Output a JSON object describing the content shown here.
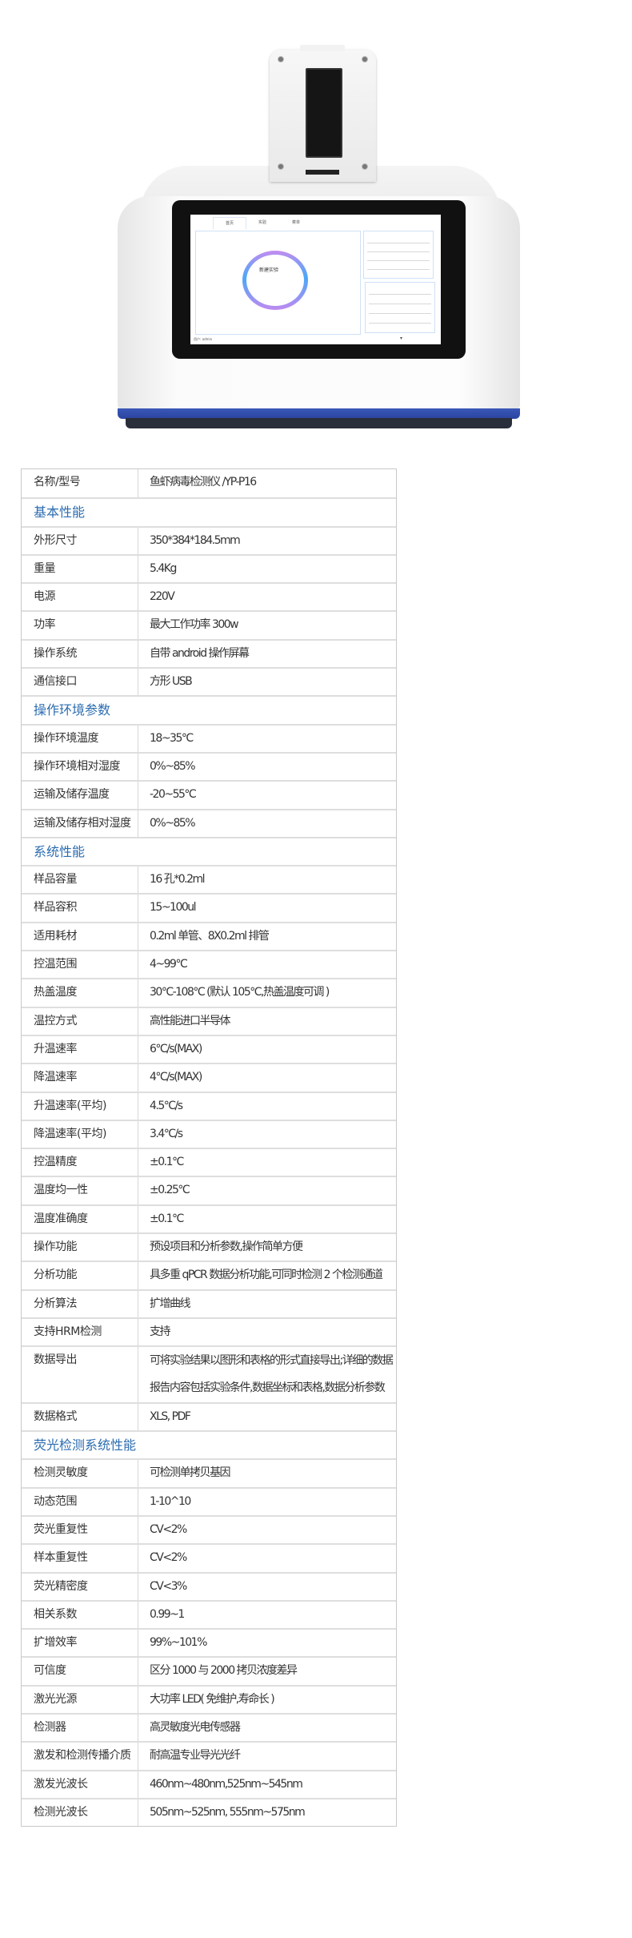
{
  "device_screen": {
    "tabs": [
      "首页",
      "实验",
      "菜单"
    ],
    "center_button": "新建实验",
    "user_label": "用户: admin"
  },
  "colors": {
    "section_heading": "#2b6cb0",
    "device_band": "#3b58b8"
  },
  "spec_table": [
    {
      "type": "row",
      "label": "名称/型号",
      "value": "鱼虾病毒检测仪 /YP-P16"
    },
    {
      "type": "section",
      "label": "基本性能"
    },
    {
      "type": "row",
      "label": "外形尺寸",
      "value": "350*384*184.5mm"
    },
    {
      "type": "row",
      "label": "重量",
      "value": "5.4Kg"
    },
    {
      "type": "row",
      "label": "电源",
      "value": "220V"
    },
    {
      "type": "row",
      "label": "功率",
      "value": "最大工作功率 300w"
    },
    {
      "type": "row",
      "label": "操作系统",
      "value": "自带 android 操作屏幕"
    },
    {
      "type": "row",
      "label": "通信接口",
      "value": "方形 USB"
    },
    {
      "type": "section",
      "label": "操作环境参数"
    },
    {
      "type": "row",
      "label": "操作环境温度",
      "value": "18~35°C"
    },
    {
      "type": "row",
      "label": "操作环境相对湿度",
      "value": "0%~85%"
    },
    {
      "type": "row",
      "label": "运输及储存温度",
      "value": "-20~55°C"
    },
    {
      "type": "row",
      "label": "运输及储存相对湿度",
      "value": "0%~85%"
    },
    {
      "type": "section",
      "label": "系统性能"
    },
    {
      "type": "row",
      "label": "样品容量",
      "value": "16 孔*0.2ml"
    },
    {
      "type": "row",
      "label": "样品容积",
      "value": "15~100ul"
    },
    {
      "type": "row",
      "label": "适用耗材",
      "value": "0.2ml 单管、8X0.2ml 排管"
    },
    {
      "type": "row",
      "label": "控温范围",
      "value": "4~99°C"
    },
    {
      "type": "row",
      "label": "热盖温度",
      "value": "30°C-108°C (默认 105°C,热盖温度可调 )"
    },
    {
      "type": "row",
      "label": "温控方式",
      "value": "高性能进口半导体"
    },
    {
      "type": "row",
      "label": "升温速率",
      "value": "6°C/s(MAX)"
    },
    {
      "type": "row",
      "label": "降温速率",
      "value": "4°C/s(MAX)"
    },
    {
      "type": "row",
      "label": "升温速率(平均)",
      "value": "4.5°C/s"
    },
    {
      "type": "row",
      "label": "降温速率(平均)",
      "value": "3.4°C/s"
    },
    {
      "type": "row",
      "label": "控温精度",
      "value": "±0.1°C"
    },
    {
      "type": "row",
      "label": "温度均一性",
      "value": "±0.25°C"
    },
    {
      "type": "row",
      "label": "温度准确度",
      "value": "±0.1°C"
    },
    {
      "type": "row",
      "label": "操作功能",
      "value": "预设项目和分析参数,操作简单方便"
    },
    {
      "type": "row",
      "label": "分析功能",
      "value": "具多重 qPCR 数据分析功能,可同时检测 2 个检测通道"
    },
    {
      "type": "row",
      "label": "分析算法",
      "value": "扩增曲线"
    },
    {
      "type": "row",
      "label": "支持HRM检测",
      "value": "支持"
    },
    {
      "type": "tall",
      "label": "数据导出",
      "value": "可将实验结果以图形和表格的形式直接导出;详细的数据",
      "value2": "报告内容包括实验条件,数据坐标和表格,数据分析参数"
    },
    {
      "type": "row",
      "label": "数据格式",
      "value": "XLS, PDF"
    },
    {
      "type": "section",
      "label": "荧光检测系统性能"
    },
    {
      "type": "row",
      "label": "检测灵敏度",
      "value": "可检测单拷贝基因"
    },
    {
      "type": "row",
      "label": "动态范围",
      "value": "1-10^10"
    },
    {
      "type": "row",
      "label": "荧光重复性",
      "value": "CV<2%"
    },
    {
      "type": "row",
      "label": "样本重复性",
      "value": "CV<2%"
    },
    {
      "type": "row",
      "label": "荧光精密度",
      "value": "CV<3%"
    },
    {
      "type": "row",
      "label": "相关系数",
      "value": "0.99~1"
    },
    {
      "type": "row",
      "label": "扩增效率",
      "value": "99%~101%"
    },
    {
      "type": "row",
      "label": "可信度",
      "value": "区分 1000 与 2000 拷贝浓度差异"
    },
    {
      "type": "row",
      "label": "激光光源",
      "value": "大功率 LED( 免维护,寿命长 )"
    },
    {
      "type": "row",
      "label": "检测器",
      "value": "高灵敏度光电传感器"
    },
    {
      "type": "row",
      "label": "激发和检测传播介质",
      "value": "耐高温专业导光光纤"
    },
    {
      "type": "row",
      "label": "激发光波长",
      "value": "460nm~480nm,525nm~545nm"
    },
    {
      "type": "row",
      "label": "检测光波长",
      "value": "505nm~525nm, 555nm~575nm"
    }
  ]
}
